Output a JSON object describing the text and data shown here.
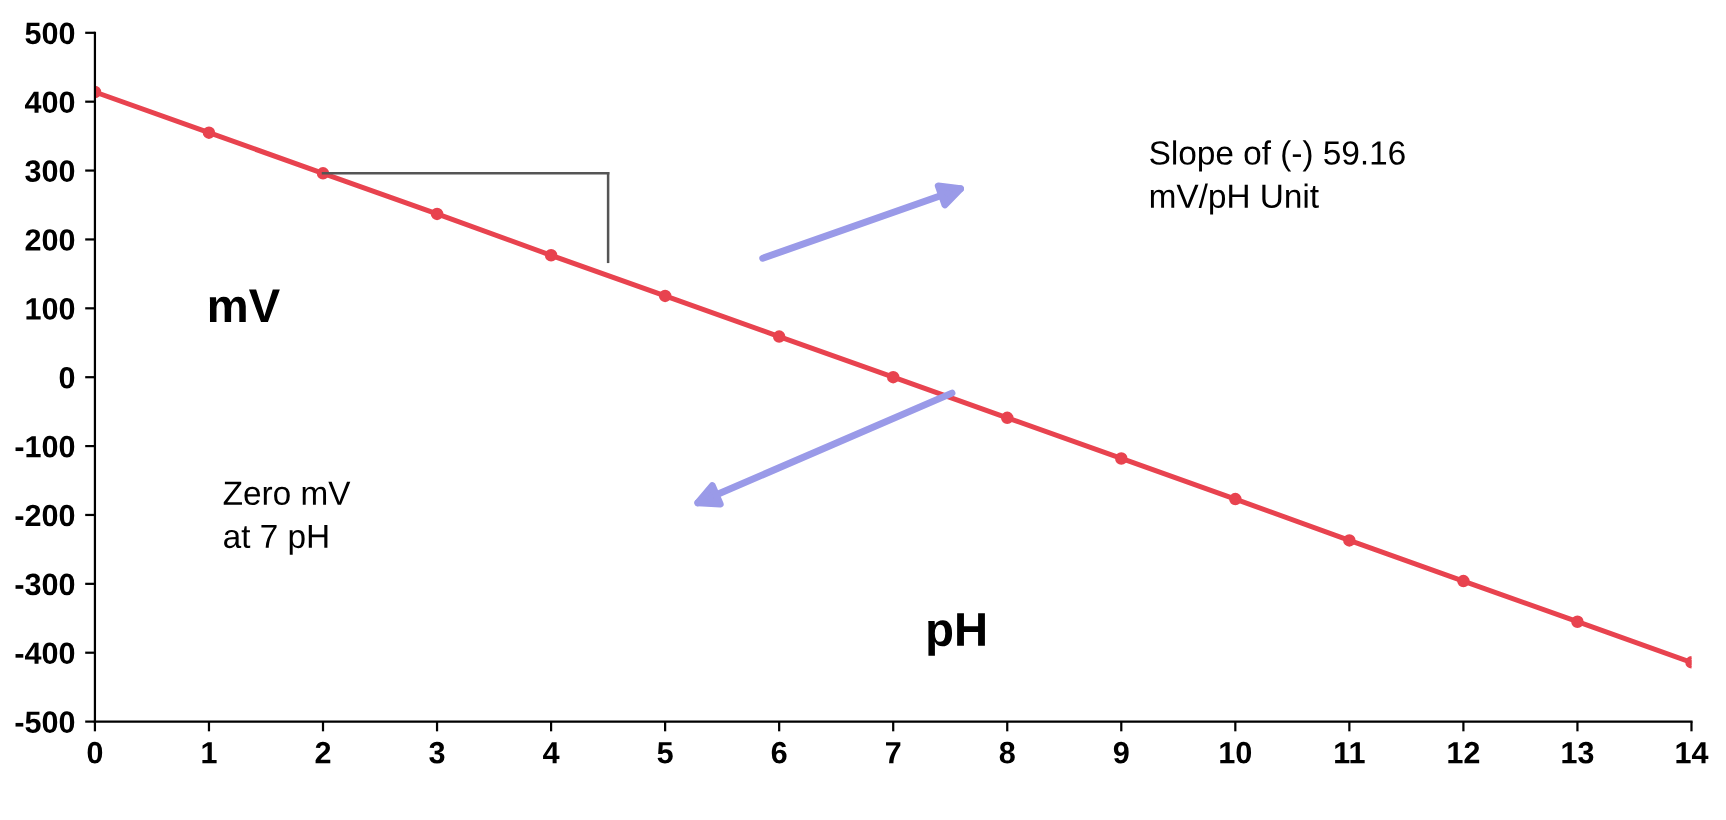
{
  "chart_data": {
    "type": "line",
    "xlabel": "pH",
    "ylabel": "mV",
    "x": [
      0,
      1,
      2,
      3,
      4,
      5,
      6,
      7,
      8,
      9,
      10,
      11,
      12,
      13,
      14
    ],
    "series": [
      {
        "color": "#e8434f",
        "values": [
          414,
          355,
          296,
          237,
          177,
          118,
          59,
          0,
          -59,
          -118,
          -177,
          -237,
          -296,
          -355,
          -414
        ]
      }
    ],
    "xlim": [
      0,
      14
    ],
    "xticks": [
      0,
      1,
      2,
      3,
      4,
      5,
      6,
      7,
      8,
      9,
      10,
      11,
      12,
      13,
      14
    ],
    "ylim": [
      -500,
      500
    ],
    "yticks": [
      -500,
      -400,
      -300,
      -200,
      -100,
      0,
      100,
      200,
      300,
      400,
      500
    ],
    "marker": "circle",
    "line_style": "solid",
    "grid": false,
    "legend": false,
    "annotations": [
      "Slope of (-) 59.16\nmV/pH Unit",
      "Zero mV\nat 7 pH"
    ]
  }
}
